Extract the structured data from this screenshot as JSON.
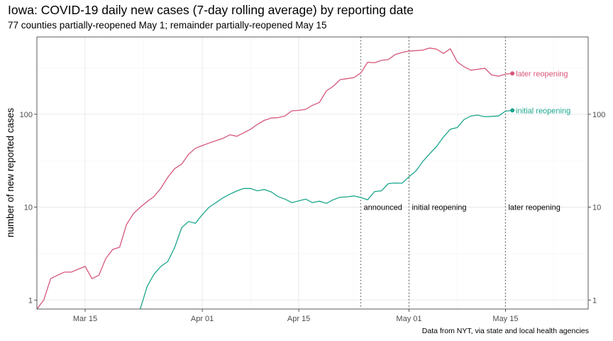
{
  "chart_data": {
    "type": "line",
    "title": "Iowa: COVID-19 daily new cases (7-day rolling average) by reporting date",
    "subtitle": "77 counties partially-reopened May 1; remainder partially-reopened May 15",
    "caption": "Data from NYT, via state and local health agencies",
    "ylabel": "number of new reported cases",
    "xlabel": "",
    "y_scale": "log10",
    "ylim": [
      0.8,
      680
    ],
    "xlim": [
      "2020-03-08",
      "2020-05-27"
    ],
    "x_ticks": [
      {
        "date": "2020-03-15",
        "label": "Mar 15"
      },
      {
        "date": "2020-04-01",
        "label": "Apr 01"
      },
      {
        "date": "2020-04-15",
        "label": "Apr 15"
      },
      {
        "date": "2020-05-01",
        "label": "May 01"
      },
      {
        "date": "2020-05-15",
        "label": "May 15"
      }
    ],
    "y_ticks": [
      {
        "value": 1,
        "label": "1"
      },
      {
        "value": 10,
        "label": "10"
      },
      {
        "value": 100,
        "label": "100"
      }
    ],
    "grid": true,
    "legend": "none (series labelled at line ends)",
    "events": [
      {
        "date": "2020-04-24",
        "label": "announced"
      },
      {
        "date": "2020-05-01",
        "label": "initial reopening"
      },
      {
        "date": "2020-05-15",
        "label": "later reopening"
      }
    ],
    "series": [
      {
        "name": "later reopening",
        "color": "#d6577a",
        "x": [
          "2020-03-08",
          "2020-03-09",
          "2020-03-10",
          "2020-03-11",
          "2020-03-12",
          "2020-03-13",
          "2020-03-14",
          "2020-03-15",
          "2020-03-16",
          "2020-03-17",
          "2020-03-18",
          "2020-03-19",
          "2020-03-20",
          "2020-03-21",
          "2020-03-22",
          "2020-03-23",
          "2020-03-24",
          "2020-03-25",
          "2020-03-26",
          "2020-03-27",
          "2020-03-28",
          "2020-03-29",
          "2020-03-30",
          "2020-03-31",
          "2020-04-01",
          "2020-04-02",
          "2020-04-03",
          "2020-04-04",
          "2020-04-05",
          "2020-04-06",
          "2020-04-07",
          "2020-04-08",
          "2020-04-09",
          "2020-04-10",
          "2020-04-11",
          "2020-04-12",
          "2020-04-13",
          "2020-04-14",
          "2020-04-15",
          "2020-04-16",
          "2020-04-17",
          "2020-04-18",
          "2020-04-19",
          "2020-04-20",
          "2020-04-21",
          "2020-04-22",
          "2020-04-23",
          "2020-04-24",
          "2020-04-25",
          "2020-04-26",
          "2020-04-27",
          "2020-04-28",
          "2020-04-29",
          "2020-04-30",
          "2020-05-01",
          "2020-05-02",
          "2020-05-03",
          "2020-05-04",
          "2020-05-05",
          "2020-05-06",
          "2020-05-07",
          "2020-05-08",
          "2020-05-09",
          "2020-05-10",
          "2020-05-11",
          "2020-05-12",
          "2020-05-13",
          "2020-05-14",
          "2020-05-15",
          "2020-05-16"
        ],
        "values": [
          0.8,
          1.0,
          1.7,
          1.85,
          2.0,
          2.0,
          2.15,
          2.3,
          1.7,
          1.85,
          2.8,
          3.5,
          3.7,
          6.5,
          8.5,
          10,
          11.5,
          13,
          16,
          21,
          26,
          29,
          37,
          43,
          46,
          49,
          52,
          55,
          60,
          58,
          63,
          69,
          78,
          86,
          91,
          92,
          96,
          109,
          110,
          113,
          125,
          134,
          178,
          200,
          236,
          242,
          248,
          278,
          363,
          358,
          380,
          388,
          440,
          462,
          480,
          484,
          491,
          517,
          502,
          452,
          507,
          366,
          324,
          298,
          305,
          313,
          265,
          257,
          270,
          275
        ]
      },
      {
        "name": "initial reopening",
        "color": "#1aa68c",
        "x": [
          "2020-03-23",
          "2020-03-24",
          "2020-03-25",
          "2020-03-26",
          "2020-03-27",
          "2020-03-28",
          "2020-03-29",
          "2020-03-30",
          "2020-03-31",
          "2020-04-01",
          "2020-04-02",
          "2020-04-03",
          "2020-04-04",
          "2020-04-05",
          "2020-04-06",
          "2020-04-07",
          "2020-04-08",
          "2020-04-09",
          "2020-04-10",
          "2020-04-11",
          "2020-04-12",
          "2020-04-13",
          "2020-04-14",
          "2020-04-15",
          "2020-04-16",
          "2020-04-17",
          "2020-04-18",
          "2020-04-19",
          "2020-04-20",
          "2020-04-21",
          "2020-04-22",
          "2020-04-23",
          "2020-04-24",
          "2020-04-25",
          "2020-04-26",
          "2020-04-27",
          "2020-04-28",
          "2020-04-29",
          "2020-04-30",
          "2020-05-01",
          "2020-05-02",
          "2020-05-03",
          "2020-05-04",
          "2020-05-05",
          "2020-05-06",
          "2020-05-07",
          "2020-05-08",
          "2020-05-09",
          "2020-05-10",
          "2020-05-11",
          "2020-05-12",
          "2020-05-13",
          "2020-05-14",
          "2020-05-15",
          "2020-05-16"
        ],
        "values": [
          0.8,
          1.4,
          1.9,
          2.3,
          2.6,
          3.7,
          6.0,
          7.0,
          6.7,
          8.3,
          10.0,
          11.2,
          12.6,
          13.8,
          14.9,
          15.9,
          15.9,
          15.0,
          15.5,
          14.6,
          13.0,
          12.2,
          11.2,
          11.7,
          12.2,
          11.2,
          11.6,
          11.0,
          12.0,
          12.8,
          12.9,
          13.2,
          12.7,
          12.0,
          14.7,
          15.0,
          17.9,
          18.2,
          18.1,
          21.3,
          24.5,
          31.0,
          37.5,
          45.0,
          57.0,
          69.0,
          72.0,
          88.0,
          96.0,
          98.0,
          94.0,
          95.0,
          96.0,
          108.0,
          110.0
        ]
      }
    ]
  }
}
